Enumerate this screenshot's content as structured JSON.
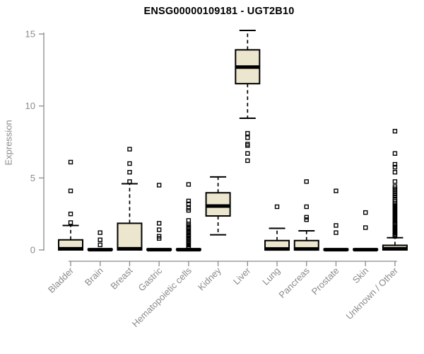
{
  "title": "ENSG00000109181 - UGT2B10",
  "chart_data": {
    "type": "boxplot",
    "title": "ENSG00000109181 - UGT2B10",
    "xlabel": "",
    "ylabel": "Expression",
    "ylim": [
      0,
      15.3
    ],
    "yticks": [
      0,
      5,
      10,
      15
    ],
    "grid": false,
    "legend": "none",
    "colors": {
      "box_fill": "#EDE6CE",
      "box_stroke": "#000000",
      "median": "#000000",
      "outlier": "#000000",
      "axis": "#8a8a8a",
      "tick_label": "#8a8a8a",
      "title": "#000000",
      "background": "#ffffff"
    },
    "categories": [
      "Bladder",
      "Brain",
      "Breast",
      "Gastric",
      "Hematopoietic cells",
      "Kidney",
      "Liver",
      "Lung",
      "Pancreas",
      "Prostate",
      "Skin",
      "Unknown / Other"
    ],
    "series": [
      {
        "name": "Bladder",
        "whisker_low": 0,
        "q1": 0,
        "median": 0.08,
        "q3": 0.7,
        "whisker_high": 1.7,
        "outliers": [
          1.9,
          2.5,
          4.1,
          6.1
        ]
      },
      {
        "name": "Brain",
        "whisker_low": 0,
        "q1": 0,
        "median": 0.02,
        "q3": 0.06,
        "whisker_high": 0.06,
        "outliers": [
          0.35,
          0.7,
          1.2
        ]
      },
      {
        "name": "Breast",
        "whisker_low": 0,
        "q1": 0,
        "median": 0.08,
        "q3": 1.85,
        "whisker_high": 4.6,
        "outliers": [
          4.75,
          5.4,
          6.0,
          7.0
        ]
      },
      {
        "name": "Gastric",
        "whisker_low": 0,
        "q1": 0,
        "median": 0.02,
        "q3": 0.06,
        "whisker_high": 0.06,
        "outliers": [
          0.8,
          0.95,
          1.4,
          1.85,
          4.5
        ]
      },
      {
        "name": "Hematopoietic cells",
        "whisker_low": 0,
        "q1": 0,
        "median": 0.02,
        "q3": 0.06,
        "whisker_high": 0.06,
        "outliers": [
          0.15,
          0.25,
          0.35,
          0.45,
          0.55,
          0.62,
          0.7,
          0.78,
          0.85,
          0.95,
          1.02,
          1.1,
          1.18,
          1.25,
          1.35,
          1.45,
          1.52,
          1.6,
          1.7,
          1.8,
          2.05,
          2.75,
          2.9,
          3.2,
          3.4,
          4.55
        ]
      },
      {
        "name": "Kidney",
        "whisker_low": 1.05,
        "q1": 2.36,
        "median": 3.05,
        "q3": 3.97,
        "whisker_high": 5.07,
        "outliers": []
      },
      {
        "name": "Liver",
        "whisker_low": 9.15,
        "q1": 11.55,
        "median": 12.7,
        "q3": 13.9,
        "whisker_high": 15.25,
        "outliers": [
          6.2,
          6.7,
          7.25,
          7.35,
          7.8,
          8.1
        ]
      },
      {
        "name": "Lung",
        "whisker_low": 0,
        "q1": 0,
        "median": 0.07,
        "q3": 0.65,
        "whisker_high": 1.5,
        "outliers": [
          3.0
        ]
      },
      {
        "name": "Pancreas",
        "whisker_low": 0,
        "q1": 0,
        "median": 0.07,
        "q3": 0.65,
        "whisker_high": 1.33,
        "outliers": [
          2.1,
          2.27,
          3.0,
          4.75
        ]
      },
      {
        "name": "Prostate",
        "whisker_low": 0,
        "q1": 0,
        "median": 0.02,
        "q3": 0.06,
        "whisker_high": 0.06,
        "outliers": [
          1.2,
          1.7,
          4.1
        ]
      },
      {
        "name": "Skin",
        "whisker_low": 0,
        "q1": 0,
        "median": 0.02,
        "q3": 0.06,
        "whisker_high": 0.06,
        "outliers": [
          1.55,
          2.6
        ]
      },
      {
        "name": "Unknown / Other",
        "whisker_low": 0,
        "q1": 0,
        "median": 0.08,
        "q3": 0.32,
        "whisker_high": 0.85,
        "outliers": [
          0.95,
          1.02,
          1.1,
          1.18,
          1.25,
          1.32,
          1.4,
          1.48,
          1.55,
          1.62,
          1.7,
          1.78,
          1.85,
          1.95,
          2.05,
          2.15,
          2.25,
          2.35,
          2.45,
          2.55,
          2.65,
          2.75,
          2.85,
          2.95,
          3.05,
          3.15,
          3.25,
          3.38,
          3.5,
          3.65,
          3.8,
          3.95,
          4.1,
          4.25,
          4.4,
          4.75,
          5.4,
          5.75,
          5.95,
          6.7,
          8.25
        ]
      }
    ]
  }
}
